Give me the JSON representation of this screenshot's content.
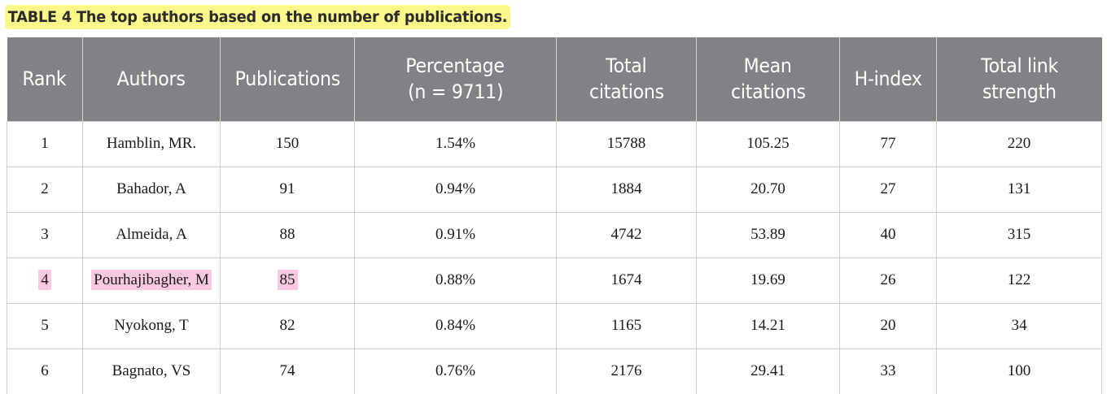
{
  "caption": "TABLE 4 The top authors based on the number of publications.",
  "headers": [
    {
      "line1": "Rank",
      "line2": ""
    },
    {
      "line1": "Authors",
      "line2": ""
    },
    {
      "line1": "Publications",
      "line2": ""
    },
    {
      "line1": "Percentage",
      "line2": "(n = 9711)"
    },
    {
      "line1": "Total",
      "line2": "citations"
    },
    {
      "line1": "Mean",
      "line2": "citations"
    },
    {
      "line1": "H-index",
      "line2": ""
    },
    {
      "line1": "Total link",
      "line2": "strength"
    }
  ],
  "rows": [
    {
      "rank": "1",
      "author": "Hamblin, MR.",
      "publications": "150",
      "percentage": "1.54%",
      "total_citations": "15788",
      "mean_citations": "105.25",
      "h_index": "77",
      "link_strength": "220"
    },
    {
      "rank": "2",
      "author": "Bahador, A",
      "publications": "91",
      "percentage": "0.94%",
      "total_citations": "1884",
      "mean_citations": "20.70",
      "h_index": "27",
      "link_strength": "131"
    },
    {
      "rank": "3",
      "author": "Almeida, A",
      "publications": "88",
      "percentage": "0.91%",
      "total_citations": "4742",
      "mean_citations": "53.89",
      "h_index": "40",
      "link_strength": "315"
    },
    {
      "rank": "4",
      "author": "Pourhajibagher, M",
      "publications": "85",
      "percentage": "0.88%",
      "total_citations": "1674",
      "mean_citations": "19.69",
      "h_index": "26",
      "link_strength": "122"
    },
    {
      "rank": "5",
      "author": "Nyokong, T",
      "publications": "82",
      "percentage": "0.84%",
      "total_citations": "1165",
      "mean_citations": "14.21",
      "h_index": "20",
      "link_strength": "34"
    },
    {
      "rank": "6",
      "author": "Bagnato, VS",
      "publications": "74",
      "percentage": "0.76%",
      "total_citations": "2176",
      "mean_citations": "29.41",
      "h_index": "33",
      "link_strength": "100"
    }
  ],
  "colors": {
    "header_bg": "#808285",
    "caption_highlight": "#fbf78a",
    "row_highlight": "#f8c8e0"
  }
}
